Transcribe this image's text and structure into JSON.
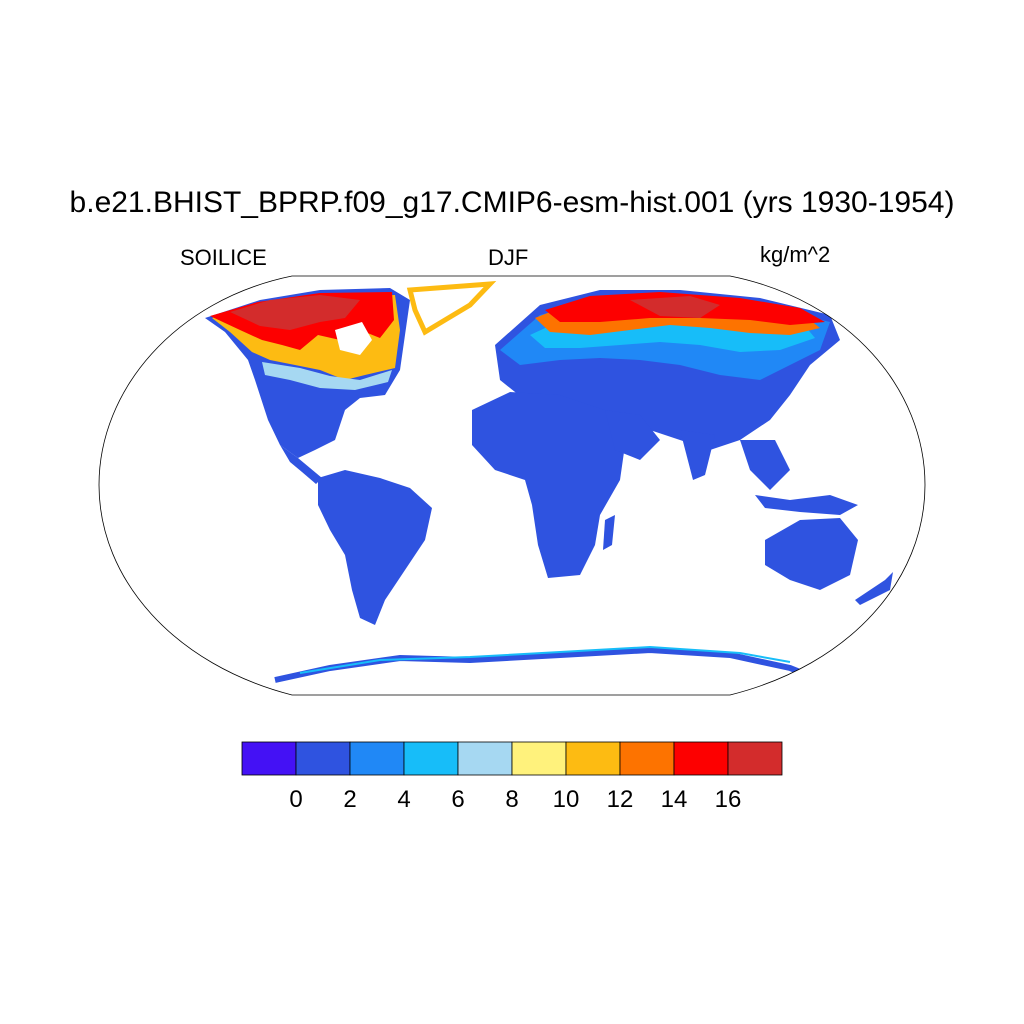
{
  "title": "b.e21.BHIST_BPRP.f09_g17.CMIP6-esm-hist.001 (yrs 1930-1954)",
  "left_string": "SOILICE",
  "center_string": "DJF",
  "right_string": "kg/m^2",
  "colorbar": {
    "colors": [
      "#4411f5",
      "#2f53e0",
      "#2088f6",
      "#17bdf9",
      "#a6d8f2",
      "#fff27c",
      "#fdbb12",
      "#fd7300",
      "#fd0000",
      "#d32c2c"
    ],
    "labels": [
      "0",
      "2",
      "4",
      "6",
      "8",
      "10",
      "12",
      "14",
      "16"
    ]
  }
}
